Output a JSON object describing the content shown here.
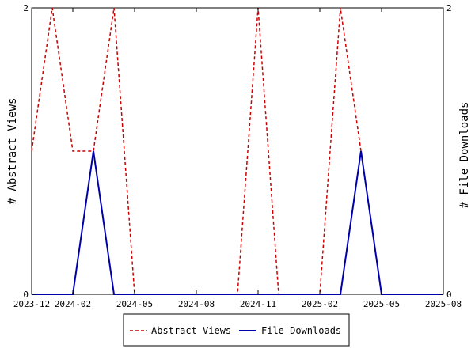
{
  "chart_data": {
    "type": "line",
    "x_tick_labels": [
      "2023-12",
      "2024-02",
      "2024-05",
      "2024-08",
      "2024-11",
      "2025-02",
      "2025-05",
      "2025-08"
    ],
    "x_tick_dates": [
      "2023-12",
      "2024-02",
      "2024-05",
      "2024-08",
      "2024-11",
      "2025-02",
      "2025-05",
      "2025-08"
    ],
    "x_range": [
      "2023-12",
      "2025-08"
    ],
    "y_left": {
      "label": "# Abstract Views",
      "range": [
        0,
        2
      ],
      "ticks": [
        "0",
        "2"
      ]
    },
    "y_right": {
      "label": "# File Downloads",
      "range": [
        0,
        2
      ],
      "ticks": [
        "0",
        "2"
      ]
    },
    "grid": false,
    "legend_position": "bottom",
    "series": [
      {
        "name": "Abstract Views",
        "axis": "left",
        "color": "#cc0000",
        "dash": "dashed",
        "points": [
          [
            "2023-12",
            1
          ],
          [
            "2024-01",
            2
          ],
          [
            "2024-02",
            1
          ],
          [
            "2024-03",
            1
          ],
          [
            "2024-04",
            2
          ],
          [
            "2024-05",
            0
          ],
          [
            "2024-06",
            0
          ],
          [
            "2024-07",
            0
          ],
          [
            "2024-08",
            0
          ],
          [
            "2024-09",
            0
          ],
          [
            "2024-10",
            0
          ],
          [
            "2024-11",
            2
          ],
          [
            "2024-12",
            0
          ],
          [
            "2025-01",
            0
          ],
          [
            "2025-02",
            0
          ],
          [
            "2025-03",
            2
          ],
          [
            "2025-04",
            1
          ],
          [
            "2025-05",
            0
          ],
          [
            "2025-06",
            0
          ],
          [
            "2025-07",
            0
          ],
          [
            "2025-08",
            0
          ]
        ]
      },
      {
        "name": "File Downloads",
        "axis": "right",
        "color": "#0000aa",
        "dash": "solid",
        "points": [
          [
            "2023-12",
            0
          ],
          [
            "2024-01",
            0
          ],
          [
            "2024-02",
            0
          ],
          [
            "2024-03",
            1
          ],
          [
            "2024-04",
            0
          ],
          [
            "2024-05",
            0
          ],
          [
            "2024-06",
            0
          ],
          [
            "2024-07",
            0
          ],
          [
            "2024-08",
            0
          ],
          [
            "2024-09",
            0
          ],
          [
            "2024-10",
            0
          ],
          [
            "2024-11",
            0
          ],
          [
            "2024-12",
            0
          ],
          [
            "2025-01",
            0
          ],
          [
            "2025-02",
            0
          ],
          [
            "2025-03",
            0
          ],
          [
            "2025-04",
            1
          ],
          [
            "2025-05",
            0
          ],
          [
            "2025-06",
            0
          ],
          [
            "2025-07",
            0
          ],
          [
            "2025-08",
            0
          ]
        ]
      }
    ]
  }
}
